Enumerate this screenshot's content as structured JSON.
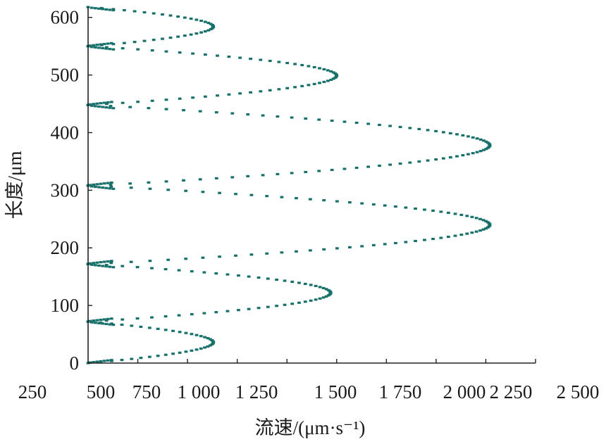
{
  "chart_data": {
    "type": "scatter",
    "title": "",
    "xlabel": "流速/(μm·s⁻¹)",
    "ylabel": "长度/μm",
    "xlim": [
      250,
      2500
    ],
    "ylim": [
      0,
      600
    ],
    "x_ticks": [
      "250",
      "500",
      "750",
      "1 000",
      "1 250",
      "1 500",
      "1 750",
      "2 000",
      "2 250",
      "2 500"
    ],
    "y_ticks": [
      "0",
      "100",
      "200",
      "300",
      "400",
      "500",
      "600"
    ],
    "grid": false,
    "legend": "none",
    "marker_color": "#17706a",
    "series": [
      {
        "points_desc": "velocity profile along channel length",
        "lobes": [
          {
            "y_start": 0,
            "y_end": 72,
            "peak_x": 880
          },
          {
            "y_start": 72,
            "y_end": 172,
            "peak_x": 1470
          },
          {
            "y_start": 172,
            "y_end": 308,
            "peak_x": 2270
          },
          {
            "y_start": 308,
            "y_end": 448,
            "peak_x": 2270
          },
          {
            "y_start": 448,
            "y_end": 550,
            "peak_x": 1500
          },
          {
            "y_start": 550,
            "y_end": 618,
            "peak_x": 880
          }
        ]
      }
    ]
  }
}
